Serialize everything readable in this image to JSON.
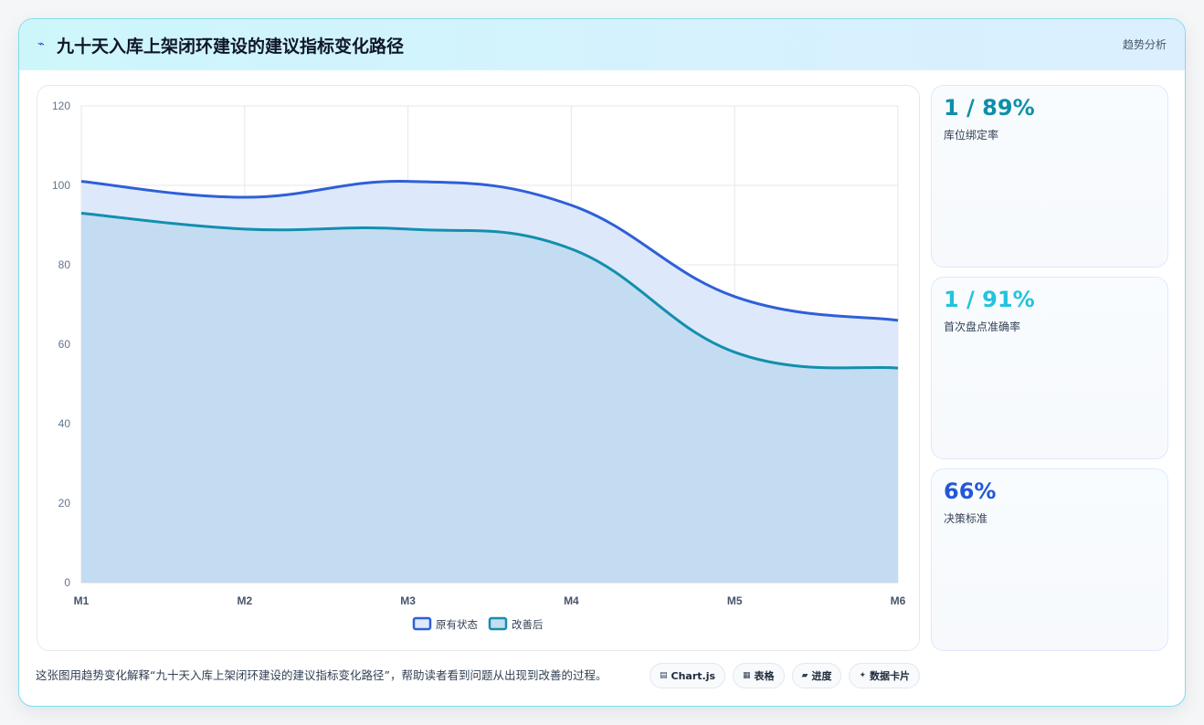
{
  "header": {
    "icon": "trend-line-icon",
    "title": "九十天入库上架闭环建设的建议指标变化路径",
    "tag": "趋势分析"
  },
  "chart_data": {
    "type": "area",
    "categories": [
      "M1",
      "M2",
      "M3",
      "M4",
      "M5",
      "M6"
    ],
    "series": [
      {
        "name": "原有状态",
        "values": [
          101,
          97,
          101,
          95,
          72,
          66
        ],
        "color": "#2f5fd8",
        "fill": "#dde9fb"
      },
      {
        "name": "改善后",
        "values": [
          93,
          89,
          89,
          84,
          58,
          54
        ],
        "color": "#138fae",
        "fill": "#c4dcf1"
      }
    ],
    "ylim": [
      0,
      120
    ],
    "yticks": [
      0,
      20,
      40,
      60,
      80,
      100,
      120
    ],
    "grid": true,
    "legend": "bottom"
  },
  "kpis": [
    {
      "value": "1 / 89%",
      "label": "库位绑定率",
      "color": "#0e8fa8"
    },
    {
      "value": "1 / 91%",
      "label": "首次盘点准确率",
      "color": "#22c3dc"
    },
    {
      "value": "66%",
      "label": "决策标准",
      "color": "#2457d6"
    }
  ],
  "footer": {
    "text": "这张图用趋势变化解释“九十天入库上架闭环建设的建议指标变化路径”，帮助读者看到问题从出现到改善的过程。",
    "chips": [
      {
        "icon": "chart-icon",
        "label": "Chart.js"
      },
      {
        "icon": "table-icon",
        "label": "表格"
      },
      {
        "icon": "progress-icon",
        "label": "进度"
      },
      {
        "icon": "sparkle-icon",
        "label": "数据卡片"
      }
    ]
  }
}
